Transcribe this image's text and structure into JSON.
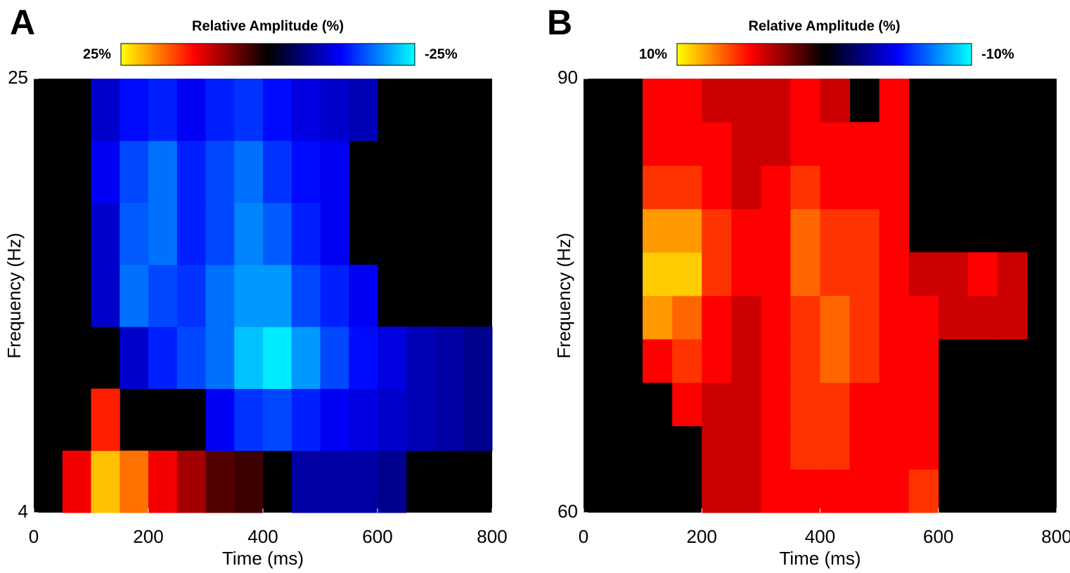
{
  "chart_data": [
    {
      "type": "heatmap",
      "title": "A",
      "colorbar_label": "Relative Amplitude (%)",
      "clim": [
        25,
        -25
      ],
      "colorbar_ticks": [
        {
          "value": 25,
          "label": "25%"
        },
        {
          "value": -25,
          "label": "-25%"
        }
      ],
      "colormap": [
        "#ffff00",
        "#ff8000",
        "#ff0000",
        "#800000",
        "#000000",
        "#000080",
        "#0000ff",
        "#0080ff",
        "#00ffff"
      ],
      "xlabel": "Time (ms)",
      "ylabel": "Frequency (Hz)",
      "xlim": [
        0,
        800
      ],
      "xticks": [
        0,
        200,
        400,
        600,
        800
      ],
      "ylim": [
        4,
        25
      ],
      "yticks": [
        4,
        25
      ],
      "x": [
        25,
        75,
        125,
        175,
        225,
        275,
        325,
        375,
        425,
        475,
        525,
        575,
        625,
        675,
        725,
        775
      ],
      "y": [
        5.5,
        8.5,
        11.5,
        14.5,
        17.5,
        20.5,
        23.5
      ],
      "z": [
        [
          null,
          12,
          22,
          18,
          12,
          8,
          4,
          3,
          null,
          -8,
          -8,
          -8,
          -7,
          null,
          null,
          null
        ],
        [
          null,
          null,
          14,
          null,
          null,
          null,
          -12,
          -15,
          -16,
          -14,
          -12,
          -11,
          -10,
          -9,
          -8,
          -7
        ],
        [
          null,
          null,
          null,
          -10,
          -14,
          -16,
          -18,
          -22,
          -24,
          -20,
          -16,
          -13,
          -11,
          -9,
          -8,
          -7
        ],
        [
          null,
          null,
          -10,
          -18,
          -16,
          -15,
          -18,
          -20,
          -20,
          -16,
          -14,
          -12,
          null,
          null,
          null,
          null
        ],
        [
          null,
          null,
          -10,
          -17,
          -18,
          -14,
          -16,
          -19,
          -17,
          -14,
          -12,
          null,
          null,
          null,
          null,
          null
        ],
        [
          null,
          null,
          -12,
          -16,
          -18,
          -14,
          -16,
          -18,
          -15,
          -13,
          -12,
          null,
          null,
          null,
          null,
          null
        ],
        [
          null,
          null,
          -10,
          -13,
          -14,
          -12,
          -14,
          -15,
          -13,
          -11,
          -10,
          -9,
          null,
          null,
          null,
          null
        ]
      ]
    },
    {
      "type": "heatmap",
      "title": "B",
      "colorbar_label": "Relative Amplitude (%)",
      "clim": [
        10,
        -10
      ],
      "colorbar_ticks": [
        {
          "value": 10,
          "label": "10%"
        },
        {
          "value": -10,
          "label": "-10%"
        }
      ],
      "colormap": [
        "#ffff00",
        "#ff8000",
        "#ff0000",
        "#800000",
        "#000000",
        "#000080",
        "#0000ff",
        "#0080ff",
        "#00ffff"
      ],
      "xlabel": "Time (ms)",
      "ylabel": "Frequency (Hz)",
      "xlim": [
        0,
        800
      ],
      "xticks": [
        0,
        200,
        400,
        600,
        800
      ],
      "ylim": [
        60,
        90
      ],
      "yticks": [
        60,
        90
      ],
      "x": [
        25,
        75,
        125,
        175,
        225,
        275,
        325,
        375,
        425,
        475,
        525,
        575,
        625,
        675,
        725,
        775
      ],
      "y": [
        61.5,
        64.5,
        67.5,
        70.5,
        73.5,
        76.5,
        79.5,
        82.5,
        85.5,
        88.5
      ],
      "z": [
        [
          null,
          null,
          null,
          null,
          4,
          4,
          5,
          5,
          5,
          5,
          5,
          6,
          null,
          null,
          null,
          null
        ],
        [
          null,
          null,
          null,
          null,
          4,
          4,
          5,
          6,
          6,
          5,
          5,
          5,
          null,
          null,
          null,
          null
        ],
        [
          null,
          null,
          null,
          5,
          4,
          4,
          5,
          6,
          6,
          5,
          5,
          5,
          null,
          null,
          null,
          null
        ],
        [
          null,
          null,
          5,
          6,
          5,
          4,
          5,
          6,
          7,
          6,
          5,
          5,
          null,
          null,
          null,
          null
        ],
        [
          null,
          null,
          8,
          7,
          5,
          4,
          5,
          6,
          7,
          6,
          5,
          5,
          4,
          4,
          4,
          null
        ],
        [
          null,
          null,
          9,
          9,
          6,
          5,
          5,
          7,
          6,
          6,
          5,
          4,
          4,
          5,
          4,
          null
        ],
        [
          null,
          null,
          8,
          8,
          6,
          5,
          5,
          7,
          6,
          6,
          5,
          null,
          null,
          null,
          null,
          null
        ],
        [
          null,
          null,
          6,
          6,
          5,
          4,
          5,
          6,
          5,
          5,
          5,
          null,
          null,
          null,
          null,
          null
        ],
        [
          null,
          null,
          5,
          5,
          5,
          4,
          4,
          5,
          5,
          5,
          5,
          null,
          null,
          null,
          null,
          null
        ],
        [
          null,
          null,
          5,
          5,
          4,
          4,
          4,
          5,
          4,
          null,
          5,
          null,
          null,
          null,
          null,
          null
        ]
      ]
    }
  ]
}
